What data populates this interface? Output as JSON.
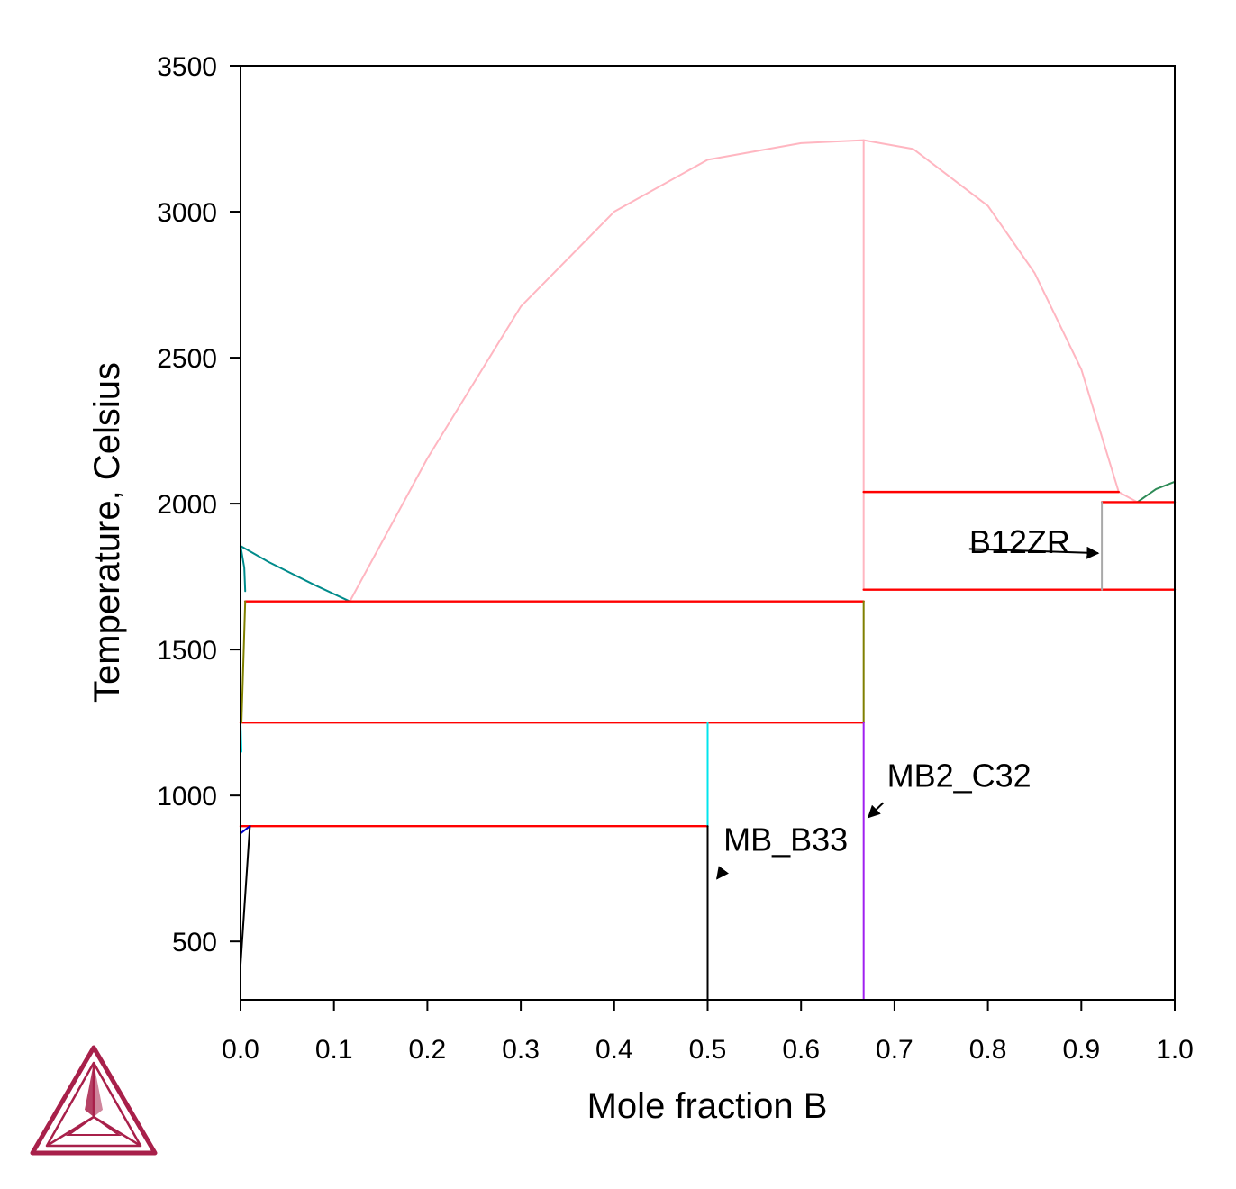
{
  "chart_data": {
    "type": "line",
    "xlabel": "Mole fraction B",
    "ylabel": "Temperature, Celsius",
    "xlim": [
      0,
      1
    ],
    "ylim": [
      300,
      3500
    ],
    "x_ticks": [
      "0.0",
      "0.1",
      "0.2",
      "0.3",
      "0.4",
      "0.5",
      "0.6",
      "0.7",
      "0.8",
      "0.9",
      "1.0"
    ],
    "y_ticks": [
      "500",
      "1000",
      "1500",
      "2000",
      "2500",
      "3000",
      "3500"
    ],
    "grid": false,
    "colors": {
      "liquidus": "#ffb6c1",
      "invariant": "#ff0000",
      "bcc_liquidus": "#008b8b",
      "boron_liquidus": "#2e8b57",
      "mb_b33": "#00e5ee",
      "mb2_c32": "#a020f0",
      "olive": "#808000",
      "black": "#000000",
      "b12zr": "#a9a9a9",
      "blue": "#0000cd"
    },
    "series": [
      {
        "color_key": "liquidus",
        "points": [
          [
            0.117,
            1665
          ],
          [
            0.2,
            2155
          ],
          [
            0.3,
            2675
          ],
          [
            0.4,
            3000
          ],
          [
            0.5,
            3178
          ],
          [
            0.6,
            3235
          ],
          [
            0.667,
            3245
          ],
          [
            0.72,
            3215
          ],
          [
            0.8,
            3020
          ],
          [
            0.85,
            2790
          ],
          [
            0.9,
            2460
          ],
          [
            0.94,
            2040
          ]
        ]
      },
      {
        "color_key": "liquidus",
        "points": [
          [
            0.667,
            3245
          ],
          [
            0.667,
            1705
          ]
        ]
      },
      {
        "color_key": "liquidus",
        "points": [
          [
            0.94,
            2040
          ],
          [
            0.96,
            2005
          ]
        ]
      },
      {
        "color_key": "bcc_liquidus",
        "points": [
          [
            0.0,
            1855
          ],
          [
            0.03,
            1800
          ],
          [
            0.08,
            1720
          ],
          [
            0.117,
            1665
          ]
        ]
      },
      {
        "color_key": "bcc_liquidus",
        "points": [
          [
            0.0,
            1855
          ],
          [
            0.004,
            1780
          ],
          [
            0.005,
            1700
          ]
        ]
      },
      {
        "color_key": "boron_liquidus",
        "points": [
          [
            0.96,
            2005
          ],
          [
            0.98,
            2050
          ],
          [
            1.0,
            2075
          ]
        ]
      },
      {
        "color_key": "invariant",
        "points": [
          [
            0.005,
            1665
          ],
          [
            0.667,
            1665
          ]
        ]
      },
      {
        "color_key": "invariant",
        "points": [
          [
            0.0,
            1250
          ],
          [
            0.667,
            1250
          ]
        ]
      },
      {
        "color_key": "invariant",
        "points": [
          [
            0.0,
            895
          ],
          [
            0.5,
            895
          ]
        ]
      },
      {
        "color_key": "invariant",
        "points": [
          [
            0.667,
            2040
          ],
          [
            0.94,
            2040
          ]
        ]
      },
      {
        "color_key": "invariant",
        "points": [
          [
            0.922,
            2005
          ],
          [
            1.0,
            2005
          ]
        ]
      },
      {
        "color_key": "invariant",
        "points": [
          [
            0.667,
            1705
          ],
          [
            1.0,
            1705
          ]
        ]
      },
      {
        "color_key": "olive",
        "points": [
          [
            0.667,
            1665
          ],
          [
            0.667,
            1250
          ]
        ]
      },
      {
        "color_key": "olive",
        "points": [
          [
            0.005,
            1665
          ],
          [
            0.001,
            1250
          ]
        ]
      },
      {
        "color_key": "mb_b33",
        "points": [
          [
            0.5,
            1250
          ],
          [
            0.5,
            895
          ]
        ]
      },
      {
        "color_key": "mb_b33",
        "points": [
          [
            0.0,
            1250
          ],
          [
            0.001,
            1150
          ]
        ]
      },
      {
        "color_key": "black",
        "points": [
          [
            0.5,
            895
          ],
          [
            0.5,
            300
          ]
        ]
      },
      {
        "color_key": "mb2_c32",
        "points": [
          [
            0.667,
            1250
          ],
          [
            0.667,
            300
          ]
        ]
      },
      {
        "color_key": "b12zr",
        "points": [
          [
            0.922,
            2005
          ],
          [
            0.922,
            1705
          ]
        ]
      },
      {
        "color_key": "black",
        "points": [
          [
            0.01,
            895
          ],
          [
            0.0,
            420
          ]
        ]
      },
      {
        "color_key": "blue",
        "points": [
          [
            0.0,
            870
          ],
          [
            0.01,
            895
          ]
        ]
      }
    ],
    "annotations": [
      {
        "text": "B12ZR",
        "x": 0.78,
        "y": 1830,
        "arrow_from": [
          0.78,
          1845
        ],
        "arrow_to": [
          0.918,
          1830
        ]
      },
      {
        "text": "MB2_C32",
        "x": 0.692,
        "y": 1030,
        "arrow_from": [
          0.688,
          975
        ],
        "arrow_to": [
          0.672,
          925
        ]
      },
      {
        "text": "MB_B33",
        "x": 0.517,
        "y": 810,
        "arrow_from": [
          0.517,
          745
        ],
        "arrow_to": [
          0.51,
          715
        ]
      }
    ]
  }
}
